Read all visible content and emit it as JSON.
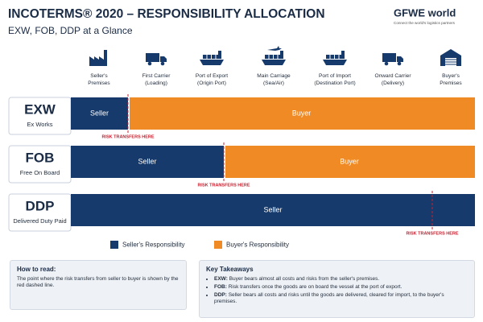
{
  "header": {
    "title": "INCOTERMS® 2020 – RESPONSIBILITY ALLOCATION",
    "subtitle": "EXW, FOB, DDP at a Glance"
  },
  "logo": {
    "name": "GFWE world",
    "tagline": "Connect the world's logistics partners"
  },
  "stages": [
    {
      "lines": [
        "Seller's",
        "Premises"
      ]
    },
    {
      "lines": [
        "First Carrier",
        "(Loading)"
      ]
    },
    {
      "lines": [
        "Port of Export",
        "(Origin Port)"
      ]
    },
    {
      "lines": [
        "Main Carriage",
        "(Sea/Air)"
      ]
    },
    {
      "lines": [
        "Port of Import",
        "(Destination Port)"
      ]
    },
    {
      "lines": [
        "Onward Carrier",
        "(Delivery)"
      ]
    },
    {
      "lines": [
        "Buyer's",
        "Premises"
      ]
    }
  ],
  "rows": [
    {
      "code": "EXW",
      "name": "Ex Works",
      "seller": "Seller",
      "buyer": "Buyer",
      "risk": "RISK TRANSFERS HERE"
    },
    {
      "code": "FOB",
      "name": "Free On Board",
      "seller": "Seller",
      "buyer": "Buyer",
      "risk": "RISK TRANSFERS HERE"
    },
    {
      "code": "DDP",
      "name": "Delivered Duty Paid",
      "seller": "Seller",
      "risk": "RISK TRANSFERS HERE"
    }
  ],
  "legend": {
    "seller": "Seller's Responsibility",
    "buyer": "Buyer's Responsibility"
  },
  "how_to_read": {
    "title": "How to read:",
    "text": "The point where the risk transfers from seller to buyer is shown by the red dashed line."
  },
  "takeaways": {
    "title": "Key Takeaways",
    "items": [
      {
        "term": "EXW:",
        "text": "Buyer bears almost all costs and risks from the seller's premises."
      },
      {
        "term": "FOB:",
        "text": "Risk transfers once the goods are on board the vessel at the port of export."
      },
      {
        "term": "DDP:",
        "text": "Seller bears all costs and risks until the goods are delivered, cleared for import, to the buyer's premises."
      }
    ]
  }
}
